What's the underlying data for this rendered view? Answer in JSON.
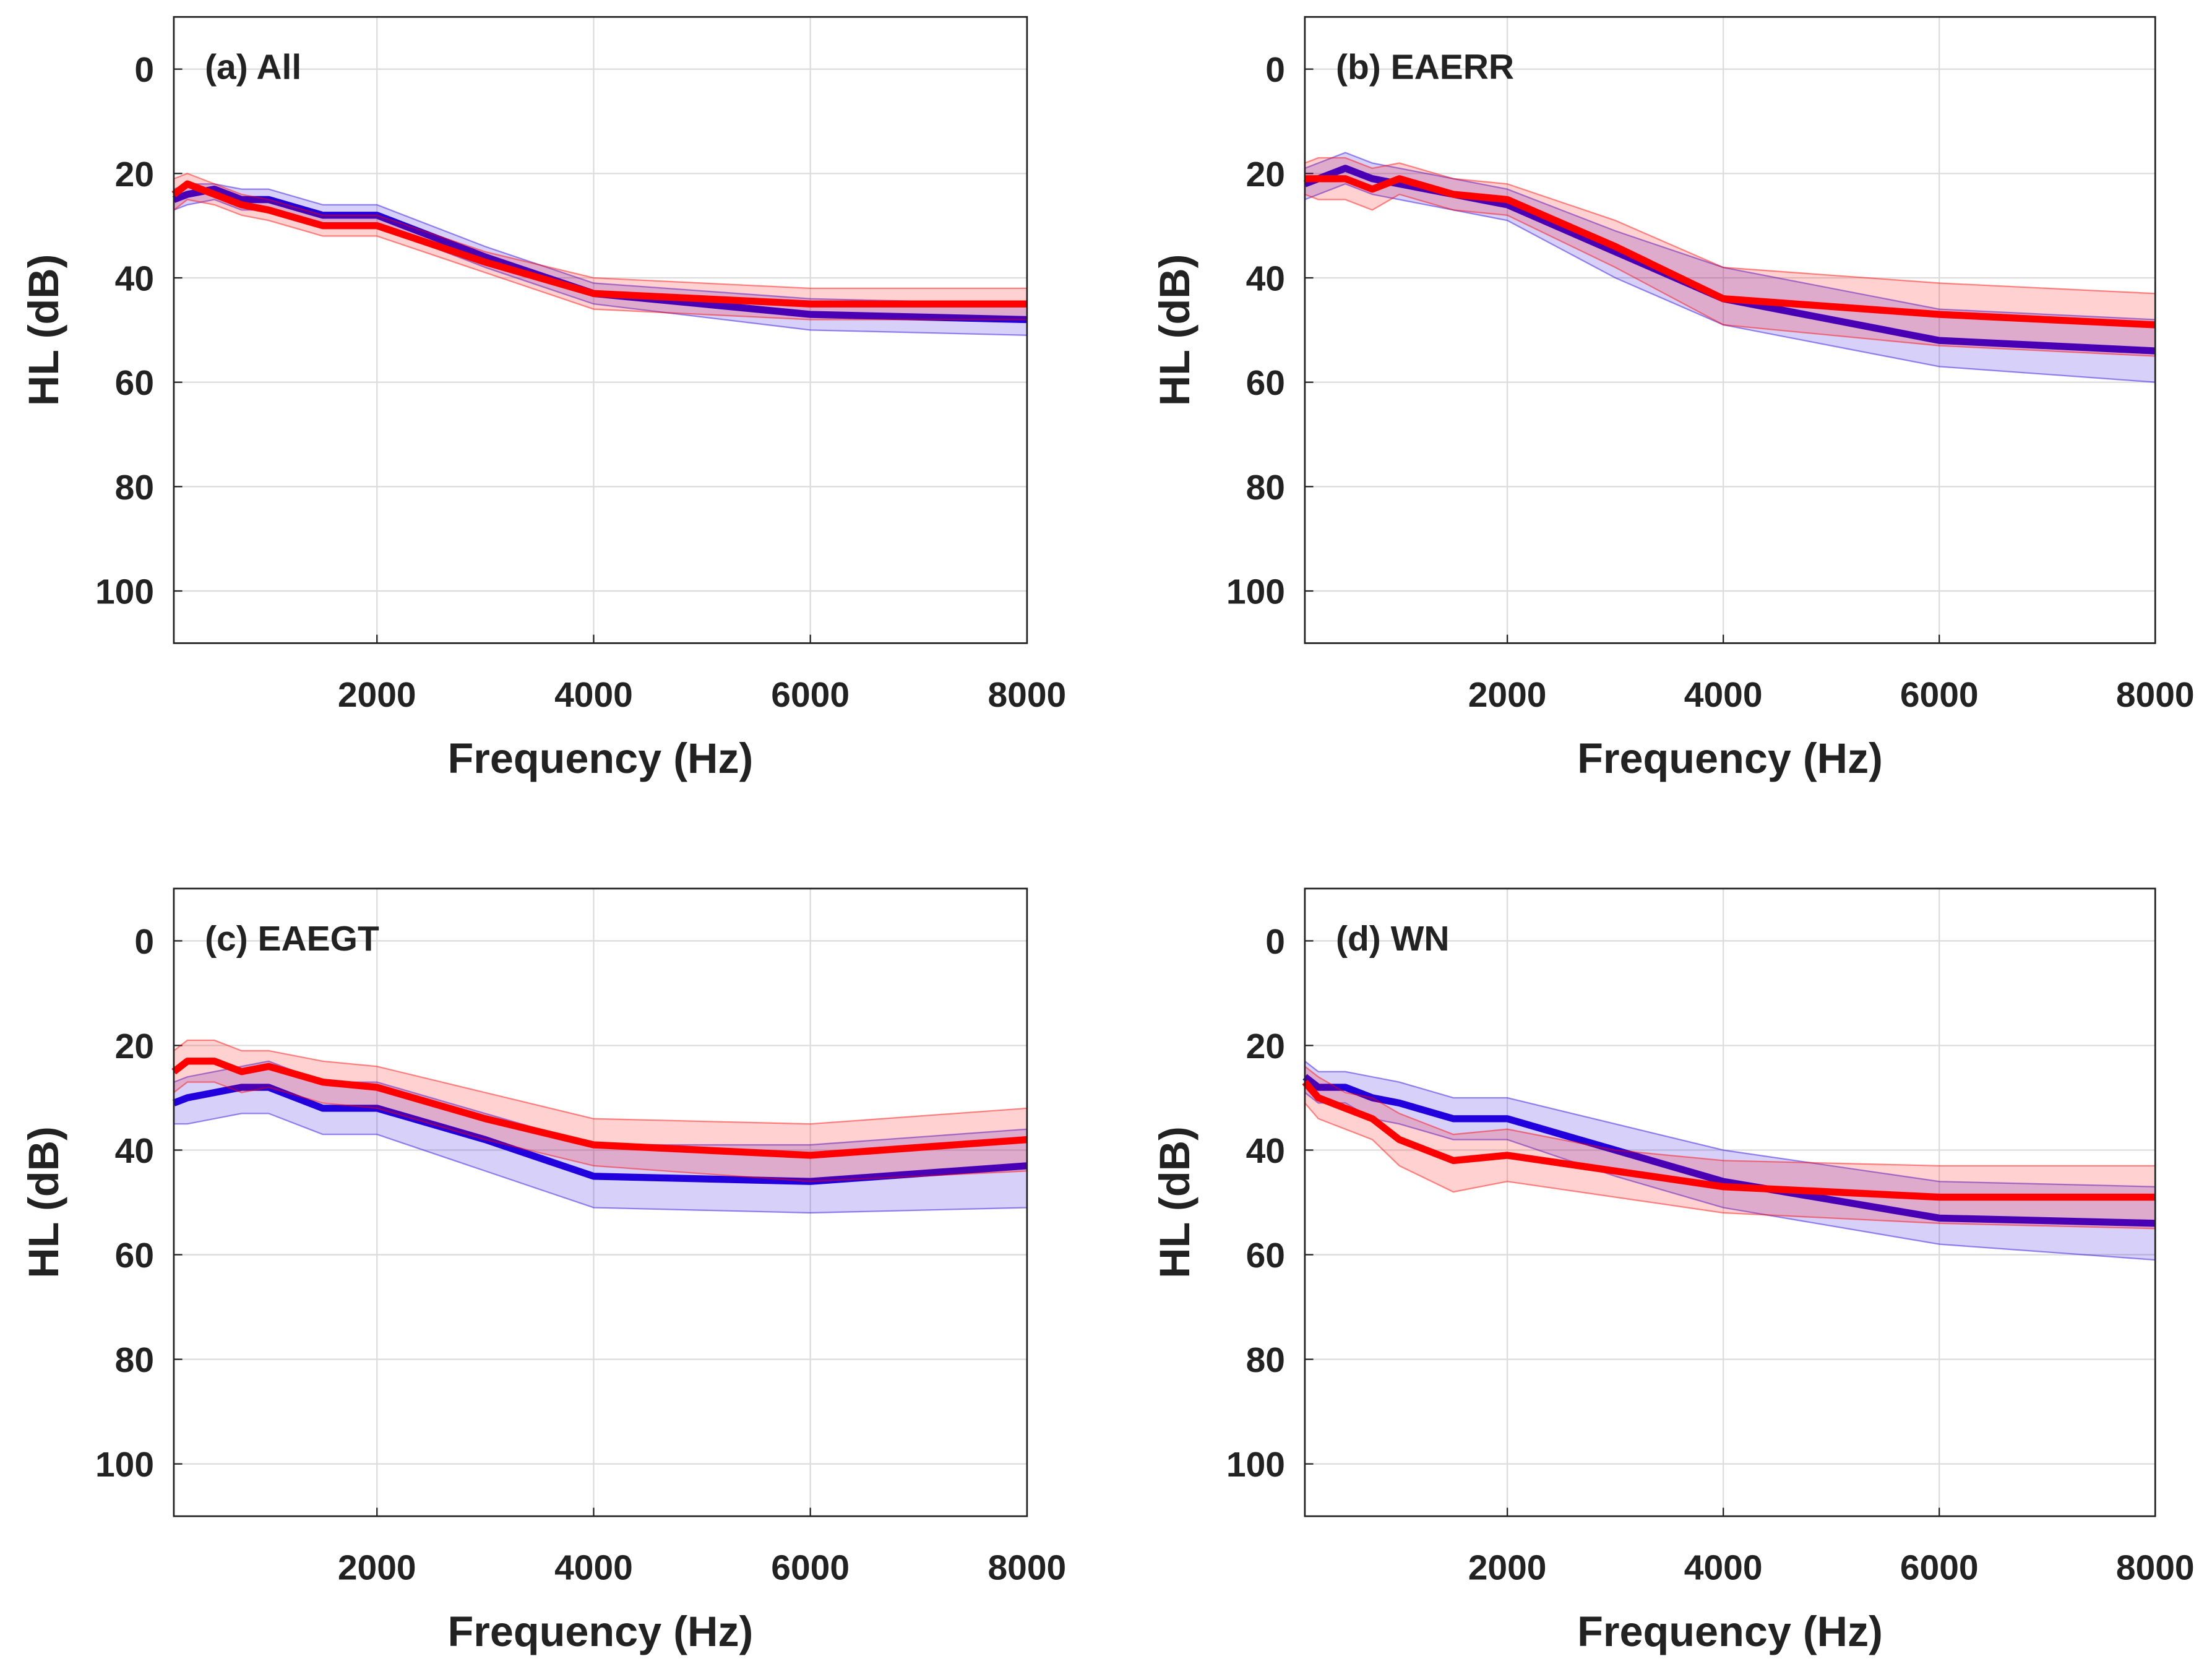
{
  "chart_data": [
    {
      "type": "line",
      "title": "(a) All",
      "xlabel": "Frequency (Hz)",
      "ylabel": "HL (dB)",
      "x": [
        125,
        250,
        500,
        750,
        1000,
        1500,
        2000,
        3000,
        4000,
        6000,
        8000
      ],
      "xlim": [
        125,
        8000
      ],
      "xticks": [
        2000,
        4000,
        6000,
        8000
      ],
      "ylim": [
        -10,
        110
      ],
      "yticks": [
        0,
        20,
        40,
        60,
        80,
        100
      ],
      "y_reversed": true,
      "grid": true,
      "series": [
        {
          "color": "#2200dd",
          "values": [
            25,
            24,
            23,
            25,
            25,
            28,
            28,
            36,
            43,
            47,
            48
          ],
          "lower": [
            23,
            22,
            22,
            23,
            23,
            26,
            26,
            34,
            41,
            44,
            45
          ],
          "upper": [
            27,
            26,
            25,
            27,
            27,
            30,
            30,
            38,
            45,
            50,
            51
          ]
        },
        {
          "color": "#ff0000",
          "values": [
            24,
            22,
            24,
            26,
            27,
            30,
            30,
            37,
            43,
            45,
            45
          ],
          "lower": [
            21,
            20,
            22,
            24,
            25,
            28,
            28,
            35,
            40,
            42,
            42
          ],
          "upper": [
            27,
            25,
            26,
            28,
            29,
            32,
            32,
            39,
            46,
            48,
            48
          ]
        }
      ]
    },
    {
      "type": "line",
      "title": "(b) EAERR",
      "xlabel": "Frequency (Hz)",
      "ylabel": "HL (dB)",
      "x": [
        125,
        250,
        500,
        750,
        1000,
        1500,
        2000,
        3000,
        4000,
        6000,
        8000
      ],
      "xlim": [
        125,
        8000
      ],
      "xticks": [
        2000,
        4000,
        6000,
        8000
      ],
      "ylim": [
        -10,
        110
      ],
      "yticks": [
        0,
        20,
        40,
        60,
        80,
        100
      ],
      "y_reversed": true,
      "grid": true,
      "series": [
        {
          "color": "#2200dd",
          "values": [
            22,
            21,
            19,
            21,
            22,
            24,
            26,
            35,
            44,
            52,
            54
          ],
          "lower": [
            19,
            18,
            16,
            18,
            19,
            21,
            23,
            31,
            38,
            46,
            48
          ],
          "upper": [
            25,
            24,
            22,
            24,
            25,
            27,
            29,
            40,
            49,
            57,
            60
          ]
        },
        {
          "color": "#ff0000",
          "values": [
            21,
            21,
            21,
            23,
            21,
            24,
            25,
            34,
            44,
            47,
            49
          ],
          "lower": [
            18,
            17,
            17,
            19,
            18,
            21,
            22,
            29,
            38,
            41,
            43
          ],
          "upper": [
            24,
            25,
            25,
            27,
            24,
            27,
            28,
            38,
            49,
            53,
            55
          ]
        }
      ]
    },
    {
      "type": "line",
      "title": "(c) EAEGT",
      "xlabel": "Frequency (Hz)",
      "ylabel": "HL (dB)",
      "x": [
        125,
        250,
        500,
        750,
        1000,
        1500,
        2000,
        3000,
        4000,
        6000,
        8000
      ],
      "xlim": [
        125,
        8000
      ],
      "xticks": [
        2000,
        4000,
        6000,
        8000
      ],
      "ylim": [
        -10,
        110
      ],
      "yticks": [
        0,
        20,
        40,
        60,
        80,
        100
      ],
      "y_reversed": true,
      "grid": true,
      "series": [
        {
          "color": "#2200dd",
          "values": [
            31,
            30,
            29,
            28,
            28,
            32,
            32,
            38,
            45,
            46,
            43
          ],
          "lower": [
            27,
            26,
            25,
            24,
            23,
            27,
            27,
            33,
            39,
            39,
            36
          ],
          "upper": [
            35,
            35,
            34,
            33,
            33,
            37,
            37,
            44,
            51,
            52,
            51
          ]
        },
        {
          "color": "#ff0000",
          "values": [
            25,
            23,
            23,
            25,
            24,
            27,
            28,
            34,
            39,
            41,
            38
          ],
          "lower": [
            21,
            19,
            19,
            21,
            21,
            23,
            24,
            29,
            34,
            35,
            32
          ],
          "upper": [
            29,
            27,
            27,
            29,
            28,
            31,
            32,
            38,
            43,
            46,
            44
          ]
        }
      ]
    },
    {
      "type": "line",
      "title": "(d) WN",
      "xlabel": "Frequency (Hz)",
      "ylabel": "HL (dB)",
      "x": [
        125,
        250,
        500,
        750,
        1000,
        1500,
        2000,
        3000,
        4000,
        6000,
        8000
      ],
      "xlim": [
        125,
        8000
      ],
      "xticks": [
        2000,
        4000,
        6000,
        8000
      ],
      "ylim": [
        -10,
        110
      ],
      "yticks": [
        0,
        20,
        40,
        60,
        80,
        100
      ],
      "y_reversed": true,
      "grid": true,
      "series": [
        {
          "color": "#2200dd",
          "values": [
            26,
            28,
            28,
            30,
            31,
            34,
            34,
            40,
            46,
            53,
            54
          ],
          "lower": [
            23,
            25,
            25,
            26,
            27,
            30,
            30,
            35,
            40,
            46,
            47
          ],
          "upper": [
            29,
            31,
            31,
            34,
            35,
            38,
            38,
            45,
            51,
            58,
            61
          ]
        },
        {
          "color": "#ff0000",
          "values": [
            27,
            30,
            32,
            34,
            38,
            42,
            41,
            44,
            47,
            49,
            49
          ],
          "lower": [
            24,
            26,
            29,
            30,
            33,
            37,
            36,
            40,
            42,
            43,
            43
          ],
          "upper": [
            31,
            34,
            36,
            38,
            43,
            48,
            46,
            49,
            52,
            54,
            55
          ]
        }
      ]
    }
  ]
}
